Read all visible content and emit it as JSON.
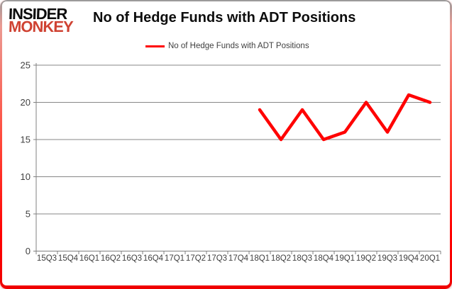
{
  "logo": {
    "line1": "INSIDER",
    "line2": "MONKEY"
  },
  "header": {
    "title": "No of Hedge Funds with ADT Positions"
  },
  "legend": {
    "label": "No of Hedge Funds with ADT Positions"
  },
  "colors": {
    "line": "#FF0000",
    "grid": "#878787",
    "axis": "#808080",
    "tick_text": "#3f3f3f",
    "logo_black": "#0d0d0d",
    "logo_red": "#cf4232",
    "frame_top": "#9a9a9a",
    "frame_bottom": "#ff0000"
  },
  "chart_data": {
    "type": "line",
    "title": "No of Hedge Funds with ADT Positions",
    "categories": [
      "15Q3",
      "15Q4",
      "16Q1",
      "16Q2",
      "16Q3",
      "16Q4",
      "17Q1",
      "17Q2",
      "17Q3",
      "17Q4",
      "18Q1",
      "18Q2",
      "18Q3",
      "18Q4",
      "19Q1",
      "19Q2",
      "19Q3",
      "19Q4",
      "20Q1"
    ],
    "series": [
      {
        "name": "No of Hedge Funds with ADT Positions",
        "color": "#FF0000",
        "values": [
          null,
          null,
          null,
          null,
          null,
          null,
          null,
          null,
          null,
          null,
          19,
          15,
          19,
          15,
          16,
          20,
          16,
          21,
          20
        ]
      }
    ],
    "xlabel": "",
    "ylabel": "",
    "ylim": [
      0,
      25
    ],
    "ytick_step": 5,
    "grid": true,
    "legend_position": "top-center"
  }
}
